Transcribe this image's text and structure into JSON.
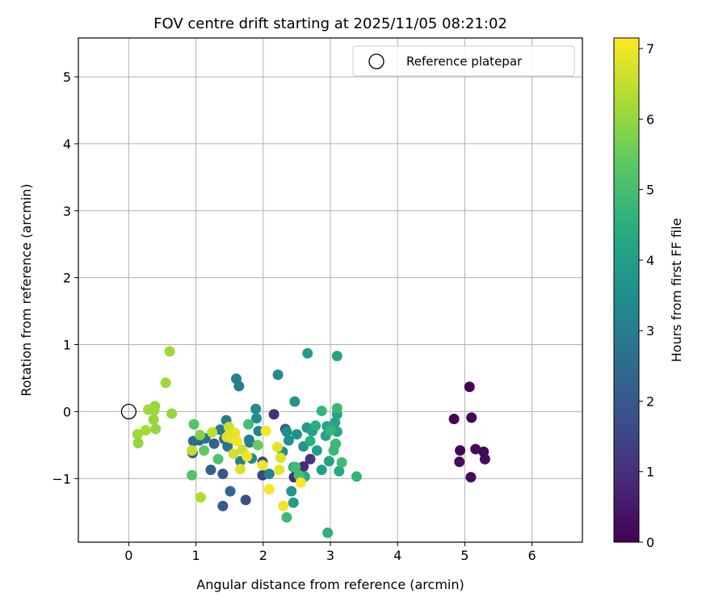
{
  "chart_data": {
    "type": "scatter",
    "title": "FOV centre drift starting at 2025/11/05 08:21:02",
    "xlabel": "Angular distance from reference (arcmin)",
    "ylabel": "Rotation from reference (arcmin)",
    "xlim": [
      -0.75,
      6.75
    ],
    "ylim": [
      -1.95,
      5.58
    ],
    "xticks": [
      0,
      1,
      2,
      3,
      4,
      5,
      6
    ],
    "xtick_labels": [
      "0",
      "1",
      "2",
      "3",
      "4",
      "5",
      "6"
    ],
    "yticks": [
      -1,
      0,
      1,
      2,
      3,
      4,
      5
    ],
    "ytick_labels": [
      "−1",
      "0",
      "1",
      "2",
      "3",
      "4",
      "5"
    ],
    "grid": true,
    "legend": {
      "label": "Reference platepar",
      "position": "top-right"
    },
    "reference_point": {
      "x": 0,
      "y": 0,
      "marker": "hollow-circle"
    },
    "colorbar": {
      "label": "Hours from first FF file",
      "min": 0,
      "max": 7.15,
      "ticks": [
        0,
        1,
        2,
        3,
        4,
        5,
        6,
        7
      ],
      "tick_labels": [
        "0",
        "1",
        "2",
        "3",
        "4",
        "5",
        "6",
        "7"
      ],
      "colormap": "viridis"
    },
    "points": [
      {
        "x": 5.07,
        "y": 0.37,
        "hours": 0.05
      },
      {
        "x": 4.84,
        "y": -0.11,
        "hours": 0.05
      },
      {
        "x": 5.1,
        "y": -0.09,
        "hours": 0.1
      },
      {
        "x": 4.93,
        "y": -0.58,
        "hours": 0.1
      },
      {
        "x": 5.16,
        "y": -0.56,
        "hours": 0.15
      },
      {
        "x": 5.28,
        "y": -0.6,
        "hours": 0.15
      },
      {
        "x": 4.92,
        "y": -0.75,
        "hours": 0.2
      },
      {
        "x": 5.3,
        "y": -0.71,
        "hours": 0.2
      },
      {
        "x": 5.09,
        "y": -0.98,
        "hours": 0.25
      },
      {
        "x": 2.16,
        "y": -0.04,
        "hours": 1.0
      },
      {
        "x": 2.46,
        "y": -0.98,
        "hours": 0.9
      },
      {
        "x": 2.6,
        "y": -0.82,
        "hours": 0.9
      },
      {
        "x": 2.7,
        "y": -0.71,
        "hours": 1.1
      },
      {
        "x": 1.99,
        "y": -0.95,
        "hours": 1.5
      },
      {
        "x": 1.99,
        "y": -0.75,
        "hours": 1.6
      },
      {
        "x": 1.74,
        "y": -1.32,
        "hours": 1.7
      },
      {
        "x": 1.4,
        "y": -1.41,
        "hours": 2.0
      },
      {
        "x": 1.4,
        "y": -0.93,
        "hours": 2.0
      },
      {
        "x": 1.51,
        "y": -1.19,
        "hours": 2.4
      },
      {
        "x": 1.22,
        "y": -0.87,
        "hours": 2.2
      },
      {
        "x": 1.27,
        "y": -0.48,
        "hours": 2.2
      },
      {
        "x": 0.95,
        "y": -0.62,
        "hours": 2.3
      },
      {
        "x": 0.96,
        "y": -0.44,
        "hours": 2.5
      },
      {
        "x": 1.05,
        "y": -0.43,
        "hours": 2.4
      },
      {
        "x": 1.14,
        "y": -0.4,
        "hours": 2.6
      },
      {
        "x": 2.33,
        "y": -0.26,
        "hours": 2.0
      },
      {
        "x": 1.36,
        "y": -0.27,
        "hours": 2.9
      },
      {
        "x": 1.45,
        "y": -0.13,
        "hours": 3.0
      },
      {
        "x": 1.42,
        "y": -0.41,
        "hours": 2.6
      },
      {
        "x": 1.47,
        "y": -0.52,
        "hours": 2.8
      },
      {
        "x": 1.6,
        "y": 0.49,
        "hours": 3.0
      },
      {
        "x": 1.64,
        "y": 0.38,
        "hours": 3.0
      },
      {
        "x": 1.66,
        "y": -0.74,
        "hours": 3.1
      },
      {
        "x": 1.79,
        "y": -0.42,
        "hours": 3.2
      },
      {
        "x": 1.8,
        "y": -0.46,
        "hours": 3.0
      },
      {
        "x": 1.83,
        "y": -0.7,
        "hours": 3.3
      },
      {
        "x": 1.93,
        "y": -0.29,
        "hours": 3.3
      },
      {
        "x": 1.9,
        "y": -0.1,
        "hours": 3.5
      },
      {
        "x": 1.89,
        "y": 0.04,
        "hours": 3.5
      },
      {
        "x": 2.22,
        "y": 0.55,
        "hours": 3.4
      },
      {
        "x": 2.09,
        "y": -0.93,
        "hours": 3.3
      },
      {
        "x": 2.29,
        "y": -0.6,
        "hours": 3.4
      },
      {
        "x": 2.35,
        "y": -0.3,
        "hours": 3.4
      },
      {
        "x": 2.38,
        "y": -0.43,
        "hours": 3.6
      },
      {
        "x": 2.42,
        "y": -1.19,
        "hours": 3.8
      },
      {
        "x": 2.45,
        "y": -1.36,
        "hours": 3.9
      },
      {
        "x": 2.47,
        "y": 0.15,
        "hours": 3.7
      },
      {
        "x": 2.5,
        "y": -0.34,
        "hours": 3.6
      },
      {
        "x": 2.6,
        "y": -0.52,
        "hours": 3.7
      },
      {
        "x": 2.66,
        "y": 0.87,
        "hours": 3.9
      },
      {
        "x": 2.65,
        "y": -0.24,
        "hours": 3.9
      },
      {
        "x": 2.73,
        "y": -0.29,
        "hours": 4.0
      },
      {
        "x": 2.8,
        "y": -0.58,
        "hours": 4.0
      },
      {
        "x": 2.87,
        "y": -0.87,
        "hours": 4.0
      },
      {
        "x": 2.93,
        "y": -0.36,
        "hours": 4.1
      },
      {
        "x": 2.95,
        "y": -0.22,
        "hours": 4.2
      },
      {
        "x": 2.98,
        "y": -0.74,
        "hours": 4.1
      },
      {
        "x": 3.07,
        "y": -0.16,
        "hours": 4.1
      },
      {
        "x": 3.1,
        "y": 0.83,
        "hours": 4.2
      },
      {
        "x": 3.1,
        "y": -0.04,
        "hours": 4.2
      },
      {
        "x": 3.1,
        "y": -0.3,
        "hours": 4.2
      },
      {
        "x": 3.13,
        "y": -0.89,
        "hours": 4.4
      },
      {
        "x": 2.45,
        "y": -0.83,
        "hours": 4.3
      },
      {
        "x": 2.62,
        "y": -0.97,
        "hours": 4.4
      },
      {
        "x": 2.7,
        "y": -0.44,
        "hours": 4.5
      },
      {
        "x": 2.78,
        "y": -0.21,
        "hours": 4.5
      },
      {
        "x": 2.87,
        "y": 0.01,
        "hours": 4.7
      },
      {
        "x": 2.96,
        "y": -1.81,
        "hours": 4.6
      },
      {
        "x": 3.0,
        "y": -0.28,
        "hours": 4.7
      },
      {
        "x": 3.05,
        "y": -0.58,
        "hours": 4.8
      },
      {
        "x": 3.08,
        "y": -0.48,
        "hours": 4.8
      },
      {
        "x": 3.1,
        "y": 0.05,
        "hours": 4.8
      },
      {
        "x": 3.17,
        "y": -0.76,
        "hours": 4.9
      },
      {
        "x": 3.39,
        "y": -0.97,
        "hours": 4.7
      },
      {
        "x": 2.35,
        "y": -1.58,
        "hours": 4.8
      },
      {
        "x": 2.48,
        "y": -0.83,
        "hours": 4.9
      },
      {
        "x": 2.53,
        "y": -0.95,
        "hours": 5.0
      },
      {
        "x": 1.78,
        "y": -0.19,
        "hours": 5.0
      },
      {
        "x": 1.33,
        "y": -0.71,
        "hours": 5.2
      },
      {
        "x": 0.94,
        "y": -0.95,
        "hours": 5.2
      },
      {
        "x": 0.97,
        "y": -0.19,
        "hours": 5.2
      },
      {
        "x": 1.12,
        "y": -0.58,
        "hours": 5.4
      },
      {
        "x": 1.92,
        "y": -0.5,
        "hours": 5.5
      },
      {
        "x": 1.06,
        "y": -0.35,
        "hours": 5.8
      },
      {
        "x": 0.61,
        "y": 0.9,
        "hours": 6.1
      },
      {
        "x": 0.55,
        "y": 0.43,
        "hours": 6.1
      },
      {
        "x": 0.64,
        "y": -0.03,
        "hours": 6.0
      },
      {
        "x": 0.39,
        "y": 0.08,
        "hours": 6.0
      },
      {
        "x": 0.38,
        "y": 0.02,
        "hours": 6.1
      },
      {
        "x": 0.29,
        "y": 0.03,
        "hours": 6.1
      },
      {
        "x": 0.37,
        "y": -0.12,
        "hours": 6.0
      },
      {
        "x": 0.4,
        "y": -0.26,
        "hours": 6.0
      },
      {
        "x": 0.25,
        "y": -0.28,
        "hours": 6.2
      },
      {
        "x": 0.13,
        "y": -0.34,
        "hours": 6.1
      },
      {
        "x": 0.14,
        "y": -0.47,
        "hours": 6.0
      },
      {
        "x": 1.07,
        "y": -1.28,
        "hours": 6.3
      },
      {
        "x": 0.94,
        "y": -0.58,
        "hours": 6.5
      },
      {
        "x": 1.24,
        "y": -0.31,
        "hours": 6.5
      },
      {
        "x": 1.49,
        "y": -0.23,
        "hours": 6.6
      },
      {
        "x": 1.52,
        "y": -0.29,
        "hours": 6.7
      },
      {
        "x": 1.46,
        "y": -0.38,
        "hours": 6.8
      },
      {
        "x": 1.53,
        "y": -0.4,
        "hours": 6.9
      },
      {
        "x": 1.58,
        "y": -0.32,
        "hours": 6.9
      },
      {
        "x": 1.56,
        "y": -0.63,
        "hours": 6.7
      },
      {
        "x": 1.69,
        "y": -0.57,
        "hours": 6.6
      },
      {
        "x": 1.66,
        "y": -0.86,
        "hours": 6.8
      },
      {
        "x": 1.76,
        "y": -0.67,
        "hours": 7.0
      },
      {
        "x": 1.99,
        "y": -0.8,
        "hours": 7.0
      },
      {
        "x": 2.04,
        "y": -0.29,
        "hours": 7.1
      },
      {
        "x": 2.09,
        "y": -1.16,
        "hours": 7.1
      },
      {
        "x": 2.21,
        "y": -0.53,
        "hours": 6.9
      },
      {
        "x": 2.24,
        "y": -0.87,
        "hours": 6.9
      },
      {
        "x": 2.26,
        "y": -0.69,
        "hours": 6.8
      },
      {
        "x": 2.3,
        "y": -1.41,
        "hours": 7.0
      },
      {
        "x": 2.56,
        "y": -1.06,
        "hours": 7.1
      },
      {
        "x": 1.61,
        "y": -0.44,
        "hours": 7.0
      }
    ]
  }
}
